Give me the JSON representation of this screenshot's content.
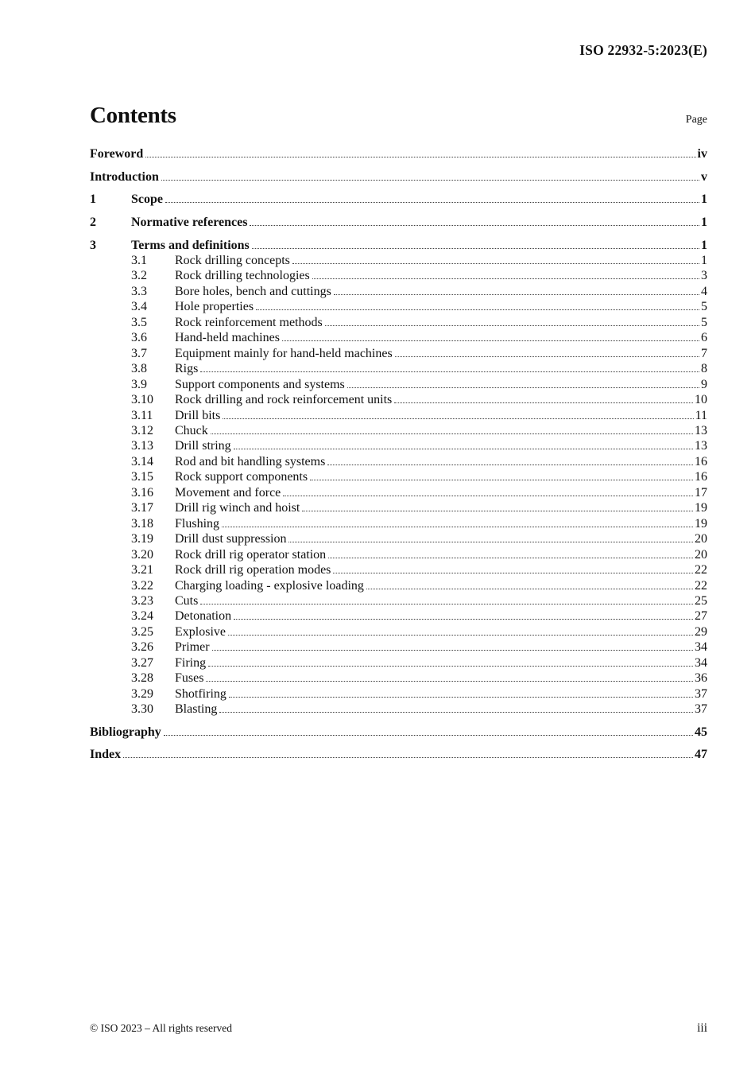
{
  "header": {
    "doc_ref": "ISO 22932-5:2023(E)"
  },
  "contents": {
    "title": "Contents",
    "page_column_label": "Page"
  },
  "toc": {
    "front_matter": [
      {
        "label": "Foreword",
        "page": "iv"
      },
      {
        "label": "Introduction",
        "page": "v"
      }
    ],
    "sections": [
      {
        "num": "1",
        "label": "Scope",
        "page": "1",
        "subs": []
      },
      {
        "num": "2",
        "label": "Normative references",
        "page": "1",
        "subs": []
      },
      {
        "num": "3",
        "label": "Terms and definitions",
        "page": "1",
        "subs": [
          {
            "num": "3.1",
            "label": "Rock drilling concepts",
            "page": "1"
          },
          {
            "num": "3.2",
            "label": "Rock drilling technologies",
            "page": "3"
          },
          {
            "num": "3.3",
            "label": "Bore holes, bench and cuttings",
            "page": "4"
          },
          {
            "num": "3.4",
            "label": "Hole properties",
            "page": "5"
          },
          {
            "num": "3.5",
            "label": "Rock reinforcement methods",
            "page": "5"
          },
          {
            "num": "3.6",
            "label": "Hand-held machines",
            "page": "6"
          },
          {
            "num": "3.7",
            "label": "Equipment mainly for hand-held machines",
            "page": "7"
          },
          {
            "num": "3.8",
            "label": "Rigs",
            "page": "8"
          },
          {
            "num": "3.9",
            "label": "Support components and systems",
            "page": "9"
          },
          {
            "num": "3.10",
            "label": "Rock drilling and rock reinforcement units",
            "page": "10"
          },
          {
            "num": "3.11",
            "label": "Drill bits",
            "page": "11"
          },
          {
            "num": "3.12",
            "label": "Chuck",
            "page": "13"
          },
          {
            "num": "3.13",
            "label": "Drill string",
            "page": "13"
          },
          {
            "num": "3.14",
            "label": "Rod and bit handling systems",
            "page": "16"
          },
          {
            "num": "3.15",
            "label": "Rock support components",
            "page": "16"
          },
          {
            "num": "3.16",
            "label": "Movement and force",
            "page": "17"
          },
          {
            "num": "3.17",
            "label": "Drill rig winch and hoist",
            "page": "19"
          },
          {
            "num": "3.18",
            "label": "Flushing",
            "page": "19"
          },
          {
            "num": "3.19",
            "label": "Drill dust suppression",
            "page": "20"
          },
          {
            "num": "3.20",
            "label": "Rock drill rig operator station",
            "page": "20"
          },
          {
            "num": "3.21",
            "label": "Rock drill rig operation modes",
            "page": "22"
          },
          {
            "num": "3.22",
            "label": "Charging loading - explosive loading",
            "page": "22"
          },
          {
            "num": "3.23",
            "label": "Cuts",
            "page": "25"
          },
          {
            "num": "3.24",
            "label": "Detonation",
            "page": "27"
          },
          {
            "num": "3.25",
            "label": "Explosive",
            "page": "29"
          },
          {
            "num": "3.26",
            "label": "Primer",
            "page": "34"
          },
          {
            "num": "3.27",
            "label": "Firing",
            "page": "34"
          },
          {
            "num": "3.28",
            "label": "Fuses",
            "page": "36"
          },
          {
            "num": "3.29",
            "label": "Shotfiring",
            "page": "37"
          },
          {
            "num": "3.30",
            "label": "Blasting",
            "page": "37"
          }
        ]
      }
    ],
    "back_matter": [
      {
        "label": "Bibliography",
        "page": "45"
      },
      {
        "label": "Index",
        "page": "47"
      }
    ]
  },
  "footer": {
    "copyright": "© ISO 2023 – All rights reserved",
    "page_number": "iii"
  }
}
